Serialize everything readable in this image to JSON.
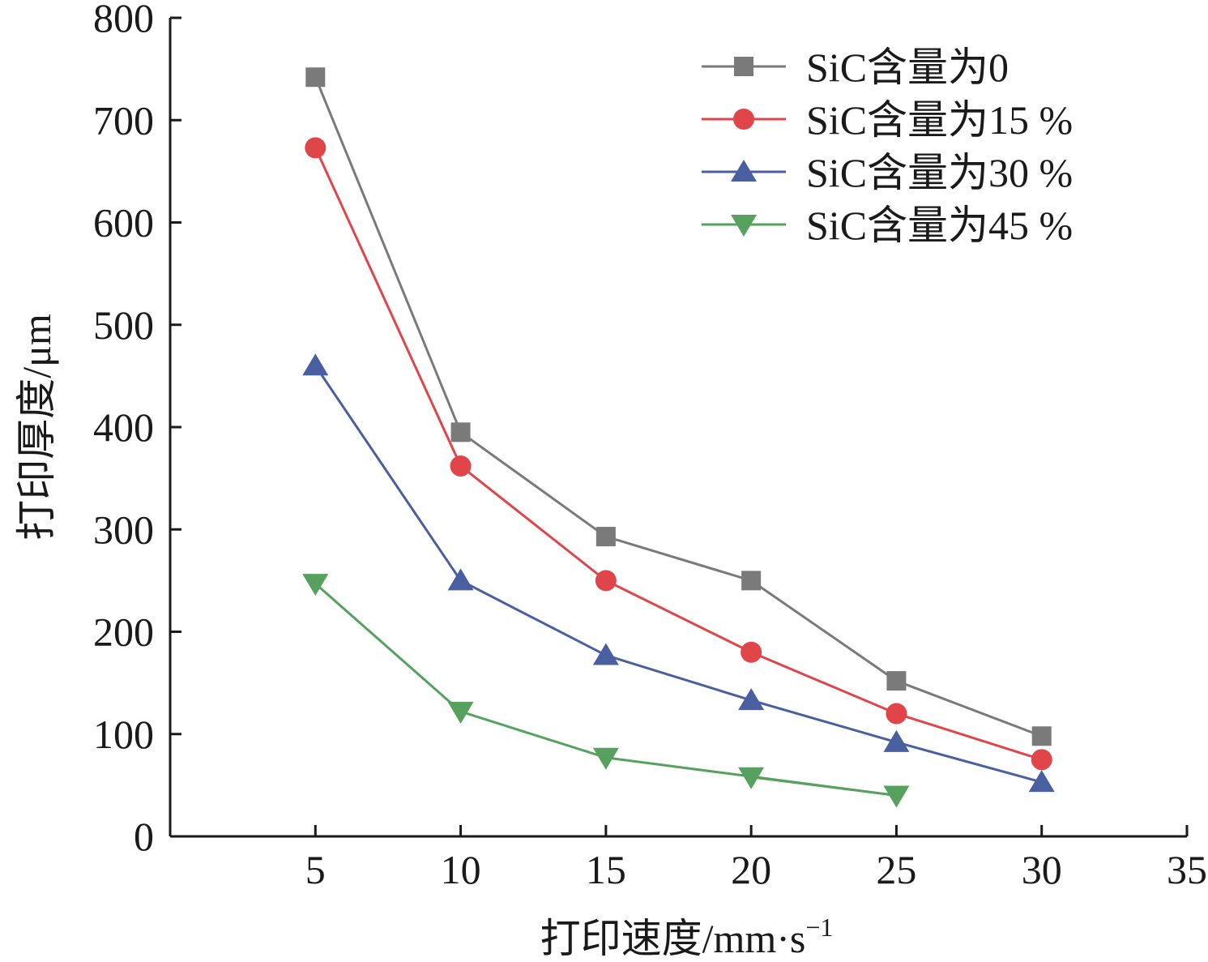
{
  "chart_data": {
    "type": "line",
    "xlabel": "打印速度/mm·s",
    "xlabel_sup": "−1",
    "ylabel": "打印厚度/μm",
    "xlim": [
      0,
      35
    ],
    "ylim": [
      0,
      800
    ],
    "xticks": [
      5,
      10,
      15,
      20,
      25,
      30,
      35
    ],
    "yticks": [
      0,
      100,
      200,
      300,
      400,
      500,
      600,
      700,
      800
    ],
    "grid": false,
    "legend_position": "top-right",
    "series": [
      {
        "name": "SiC含量为0",
        "color": "#7a7a7a",
        "marker": "square",
        "x": [
          5,
          10,
          15,
          20,
          25,
          30
        ],
        "y": [
          742,
          395,
          293,
          250,
          152,
          98
        ]
      },
      {
        "name": "SiC含量为15 %",
        "color": "#e0454a",
        "marker": "circle",
        "x": [
          5,
          10,
          15,
          20,
          25,
          30
        ],
        "y": [
          673,
          362,
          250,
          180,
          120,
          75
        ]
      },
      {
        "name": "SiC含量为30 %",
        "color": "#4a5fa0",
        "marker": "triangle-up",
        "x": [
          5,
          10,
          15,
          20,
          25,
          30
        ],
        "y": [
          460,
          250,
          177,
          133,
          92,
          53
        ]
      },
      {
        "name": "SiC含量为45 %",
        "color": "#56a15e",
        "marker": "triangle-down",
        "x": [
          5,
          10,
          15,
          25,
          20
        ],
        "y": [
          247,
          122,
          77,
          40,
          58
        ]
      }
    ]
  }
}
